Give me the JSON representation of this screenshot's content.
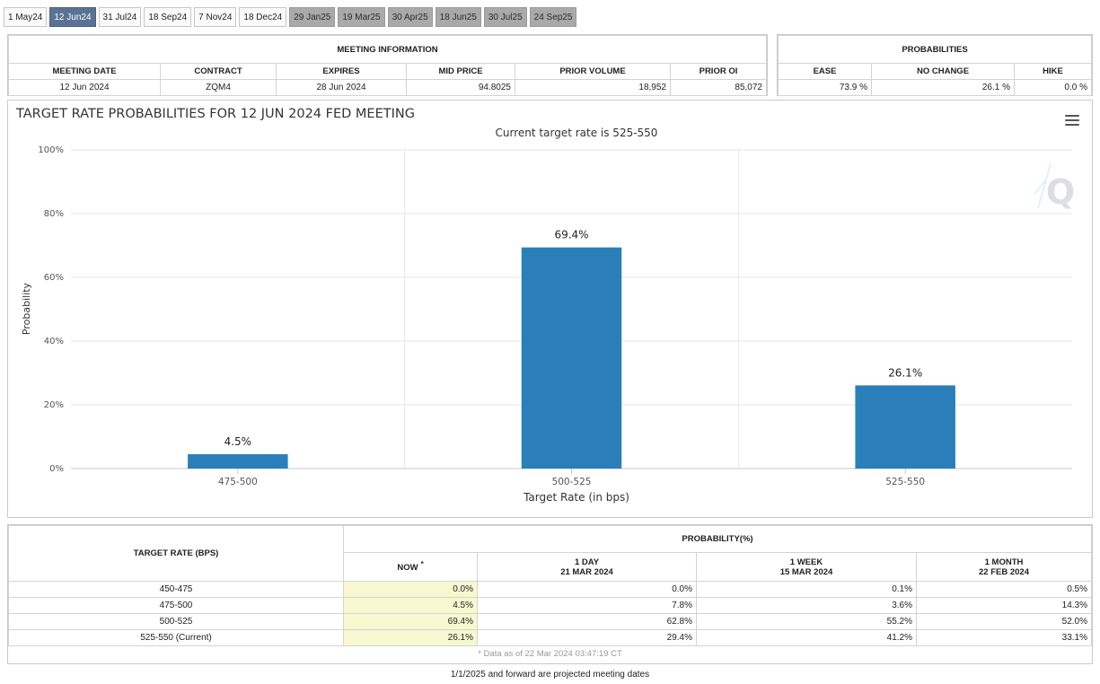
{
  "tabs": [
    {
      "label": "1 May24",
      "state": "normal"
    },
    {
      "label": "12 Jun24",
      "state": "active"
    },
    {
      "label": "31 Jul24",
      "state": "normal"
    },
    {
      "label": "18 Sep24",
      "state": "normal"
    },
    {
      "label": "7 Nov24",
      "state": "normal"
    },
    {
      "label": "18 Dec24",
      "state": "normal"
    },
    {
      "label": "29 Jan25",
      "state": "projected"
    },
    {
      "label": "19 Mar25",
      "state": "projected"
    },
    {
      "label": "30 Apr25",
      "state": "projected"
    },
    {
      "label": "18 Jun25",
      "state": "projected"
    },
    {
      "label": "30 Jul25",
      "state": "projected"
    },
    {
      "label": "24 Sep25",
      "state": "projected"
    }
  ],
  "meeting_info": {
    "title": "MEETING INFORMATION",
    "headers": [
      "MEETING DATE",
      "CONTRACT",
      "EXPIRES",
      "MID PRICE",
      "PRIOR VOLUME",
      "PRIOR OI"
    ],
    "values": [
      "12 Jun 2024",
      "ZQM4",
      "28 Jun 2024",
      "94.8025",
      "18,952",
      "85,072"
    ]
  },
  "probabilities": {
    "title": "PROBABILITIES",
    "headers": [
      "EASE",
      "NO CHANGE",
      "HIKE"
    ],
    "values": [
      "73.9 %",
      "26.1 %",
      "0.0 %"
    ]
  },
  "chart_data": {
    "type": "bar",
    "title": "TARGET RATE PROBABILITIES FOR 12 JUN 2024 FED MEETING",
    "subtitle": "Current target rate is 525-550",
    "xlabel": "Target Rate (in bps)",
    "ylabel": "Probability",
    "categories": [
      "475-500",
      "500-525",
      "525-550"
    ],
    "values": [
      4.5,
      69.4,
      26.1
    ],
    "data_labels": [
      "4.5%",
      "69.4%",
      "26.1%"
    ],
    "ylim": [
      0,
      100
    ],
    "yticks": [
      "0%",
      "20%",
      "40%",
      "60%",
      "80%",
      "100%"
    ],
    "bar_color": "#2a7fba",
    "grid": true,
    "legend": "none"
  },
  "history": {
    "target_rate_header": "TARGET RATE (BPS)",
    "probability_header": "PROBABILITY(%)",
    "columns": [
      {
        "label": "NOW",
        "sub": "",
        "mark": "*"
      },
      {
        "label": "1 DAY",
        "sub": "21 MAR 2024",
        "mark": ""
      },
      {
        "label": "1 WEEK",
        "sub": "15 MAR 2024",
        "mark": ""
      },
      {
        "label": "1 MONTH",
        "sub": "22 FEB 2024",
        "mark": ""
      }
    ],
    "rows": [
      {
        "rate": "450-475",
        "values": [
          "0.0%",
          "0.0%",
          "0.1%",
          "0.5%"
        ]
      },
      {
        "rate": "475-500",
        "values": [
          "4.5%",
          "7.8%",
          "3.6%",
          "14.3%"
        ]
      },
      {
        "rate": "500-525",
        "values": [
          "69.4%",
          "62.8%",
          "55.2%",
          "52.0%"
        ]
      },
      {
        "rate": "525-550 (Current)",
        "values": [
          "26.1%",
          "29.4%",
          "41.2%",
          "33.1%"
        ]
      }
    ],
    "data_note": "* Data as of 22 Mar 2024 03:47:19 CT"
  },
  "footer_note": "1/1/2025 and forward are projected meeting dates"
}
